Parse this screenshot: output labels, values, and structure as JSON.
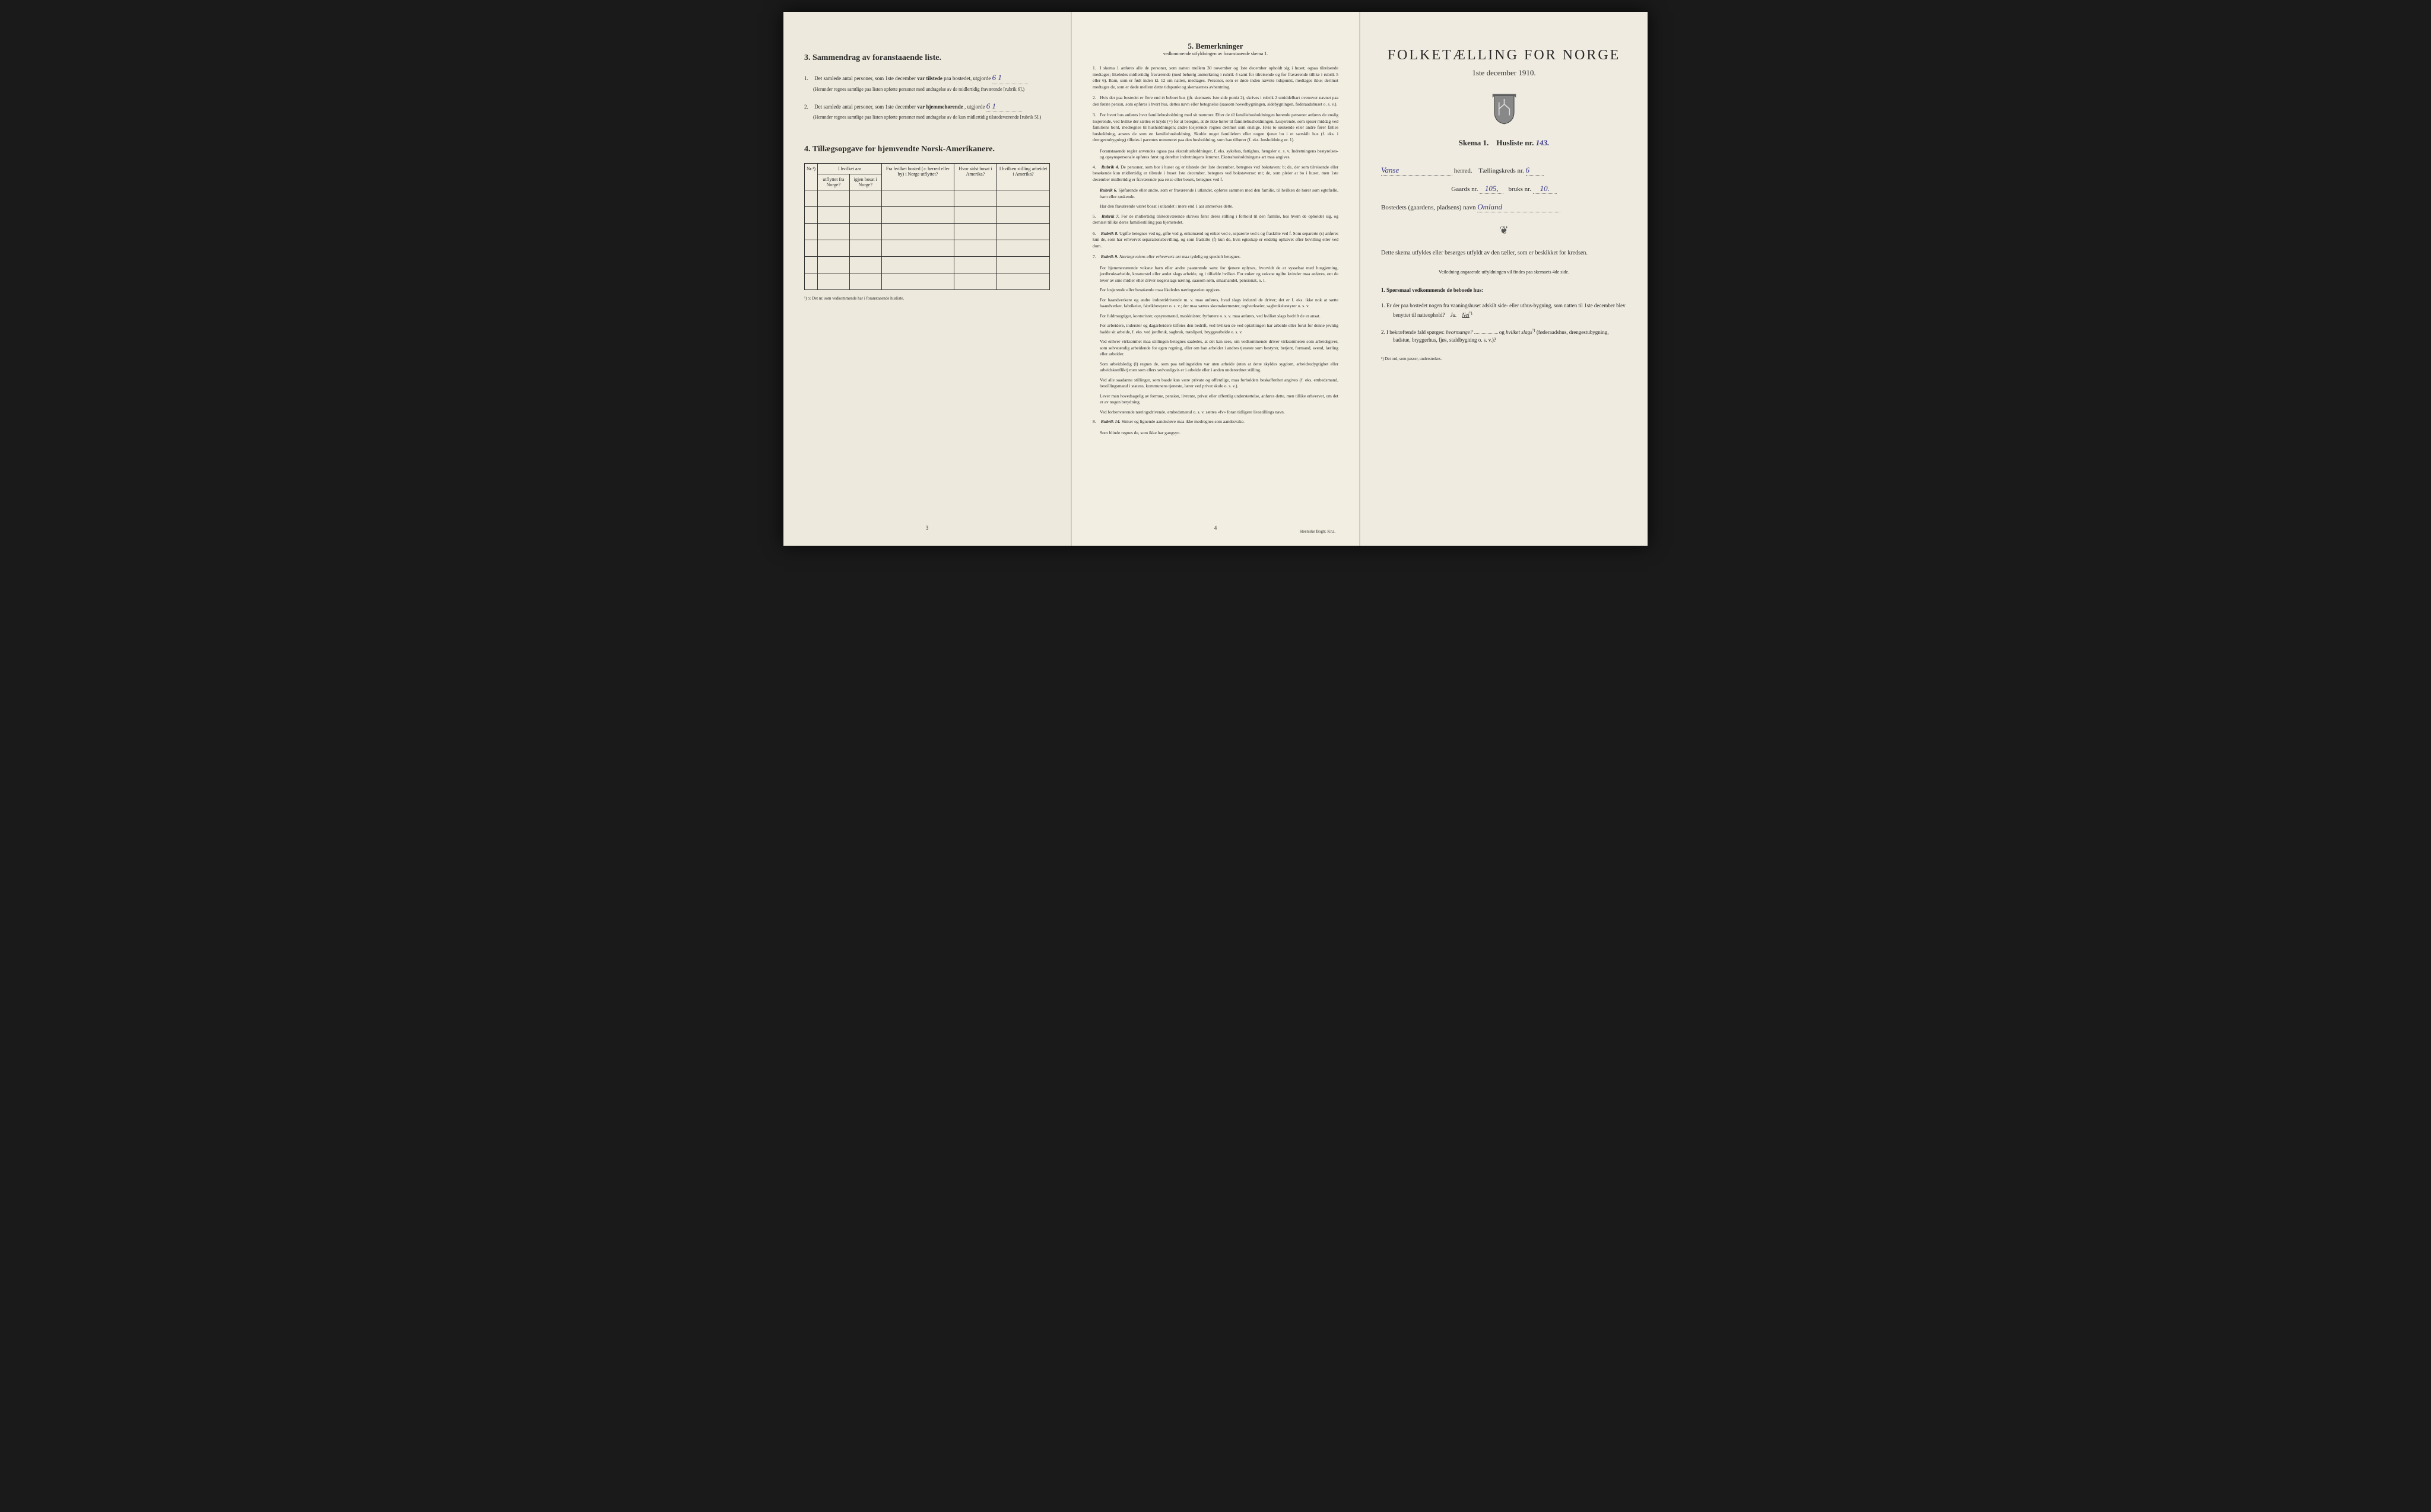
{
  "page_left": {
    "section3": {
      "number": "3.",
      "title": "Sammendrag av foranstaaende liste.",
      "item1": {
        "num": "1.",
        "text_before": "Det samlede antal personer, som 1ste december",
        "text_bold": "var tilstede",
        "text_after": "paa bostedet, utgjorde",
        "value": "6  1",
        "note": "(Herunder regnes samtlige paa listen opførte personer med undtagelse av de midlertidig fraværende [rubrik 6].)"
      },
      "item2": {
        "num": "2.",
        "text_before": "Det samlede antal personer, som 1ste december",
        "text_bold": "var hjemmehørende",
        "text_after": ", utgjorde",
        "value": "6  1",
        "note": "(Herunder regnes samtlige paa listen opførte personer med undtagelse av de kun midlertidig tilstedeværende [rubrik 5].)"
      }
    },
    "section4": {
      "number": "4.",
      "title": "Tillægsopgave for hjemvendte Norsk-Amerikanere.",
      "headers": {
        "col1": "Nr.¹)",
        "col2_top": "I hvilket aar",
        "col2a": "utflyttet fra Norge?",
        "col2b": "igjen bosat i Norge?",
        "col3": "Fra hvilket bosted (ɔ: herred eller by) i Norge utflyttet?",
        "col4": "Hvor sidst bosat i Amerika?",
        "col5": "I hvilken stilling arbeidet i Amerika?"
      },
      "footnote": "¹) ɔ: Det nr. som vedkommende har i foranstaaende husliste.",
      "rows": 6
    },
    "page_num": "3"
  },
  "page_middle": {
    "section5": {
      "number": "5.",
      "title": "Bemerkninger",
      "subtitle": "vedkommende utfyldningen av foranstaaende skema 1."
    },
    "remarks": [
      {
        "num": "1.",
        "text": "I skema 1 anføres alle de personer, som natten mellem 30 november og 1ste december opholdt sig i huset; ogsaa tilreisende medtages; likeledes midlertidig fraværende (med behørig anmerkning i rubrik 4 samt for tilreisende og for fraværende tillike i rubrik 5 eller 6). Barn, som er født inden kl. 12 om natten, medtages. Personer, som er døde inden nævnte tidspunkt, medtages ikke; derimot medtages de, som er døde mellem dette tidspunkt og skemaernes avhentning."
      },
      {
        "num": "2.",
        "text": "Hvis der paa bostedet er flere end ét beboet hus (jfr. skemaets 1ste side punkt 2), skrives i rubrik 2 umiddelbart ovenover navnet paa den første person, som opføres i hvert hus, dettes navn eller betegnelse (saasom hovedbygningen, sidebygningen, føderaadshuset o. s. v.)."
      },
      {
        "num": "3.",
        "text": "For hvert hus anføres hver familiehusholdning med sit nummer. Efter de til familiehusholdningen hørende personer anføres de enslig losjerende, ved hvilke der sættes et kryds (×) for at betegne, at de ikke hører til familiehusholdningen. Losjerende, som spiser middag ved familiens bord, medregnes til husholdningen; andre losjerende regnes derimot som enslige. Hvis to søskende eller andre fører fælles husholdning, ansees de som en familiehusholdning. Skulde noget familielem eller nogen tjener bo i et særskilt hus (f. eks. i drengestubygning) tilføies i parentes nummeret paa den husholdning, som han tilhører (f. eks. husholdning nr. 1)."
      }
    ],
    "remarks_indent1": "Foranstaaende regler anvendes ogsaa paa ekstrahusholdninger, f. eks. sykehus, fattighus, fængsler o. s. v. Indretningens bestyrelses- og opsynspersonale opføres først og derefter indretningens lemmer. Ekstrahusholdningens art maa angives.",
    "remark4": {
      "num": "4.",
      "bold": "Rubrik 4.",
      "text": "De personer, som bor i huset og er tilstede der 1ste december, betegnes ved bokstaven: b; de, der som tilreisende eller besøkende kun midlertidig er tilstede i huset 1ste december, betegnes ved bokstaverne: mt; de, som pleier at bo i huset, men 1ste december midlertidig er fraværende paa reise eller besøk, betegnes ved f."
    },
    "remark4_indent1": {
      "bold": "Rubrik 6.",
      "text": "Sjøfarende eller andre, som er fraværende i utlandet, opføres sammen med den familie, til hvilken de hører som egtefælle, barn eller søskende."
    },
    "remark4_indent2": "Har den fraværende været bosat i utlandet i mere end 1 aar anmerkes dette.",
    "remark5": {
      "num": "5.",
      "bold": "Rubrik 7.",
      "text": "For de midlertidig tilstedeværende skrives først deres stilling i forhold til den familie, hos hvem de opholder sig, og dernæst tillike deres familiestilling paa hjemstedet."
    },
    "remark6": {
      "num": "6.",
      "bold": "Rubrik 8.",
      "text": "Ugifte betegnes ved ug, gifte ved g, enkemænd og enker ved e, separerte ved s og fraskilte ved f. Som separerte (s) anføres kun de, som har erhvervet separationsbevilling, og som fraskilte (f) kun de, hvis egteskap er endelig ophævet efter bevilling eller ved dom."
    },
    "remark7": {
      "num": "7.",
      "bold": "Rubrik 9.",
      "italic": "Næringsveiens eller erhvervets art",
      "text": "maa tydelig og specielt betegnes."
    },
    "remark7_lines": [
      "For hjemmeværende voksne barn eller andre paarørende samt for tjenere oplyses, hvorvidt de er sysselsat med husgjerning, jordbruksarbeide, kreaturstel eller andet slags arbeide, og i tilfælde hvilket. For enker og voksne ugifte kvinder maa anføres, om de lever av sine midler eller driver nogenslags næring, saasom søm, smaahandel, pensionat, o. l.",
      "For losjerende eller besøkende maa likeledes næringsveien opgives.",
      "For haandverkere og andre industridrivende m. v. maa anføres, hvad slags industri de driver; det er f. eks. ikke nok at sætte haandverker, fabrikeier, fabrikbestyrer o. s. v.; der maa sættes skomakermester, teglverkseier, sagbruksbestyrer o. s. v.",
      "For fuldmægtiger, kontorister, opsynsmænd, maskinister, fyrbøtere o. s. v. maa anføres, ved hvilket slags bedrift de er ansat.",
      "For arbeidere, inderster og dagarbeidere tilføies den bedrift, ved hvilken de ved optællingen har arbeide eller forut for denne jevnlig hadde sit arbeide, f. eks. ved jordbruk, sagbruk, træsliperi, bryggearbeide o. s. v.",
      "Ved enhver virksomhet maa stillingen betegnes saaledes, at det kan sees, om vedkommende driver virksomheten som arbeidsgiver, som selvstændig arbeidende for egen regning, eller om han arbeider i andres tjeneste som bestyrer, betjent, formand, svend, lærling eller arbeider.",
      "Som arbeidsledig (l) regnes de, som paa tællingstiden var uten arbeide (uten at dette skyldes sygdom, arbeidsudygtighet eller arbeidskonflikt) men som ellers sedvanligvis er i arbeide eller i anden underordnet stilling.",
      "Ved alle saadanne stillinger, som baade kan være private og offentlige, maa forholdets beskaffenhet angives (f. eks. embedsmand, bestillingsmand i statens, kommunens tjeneste, lærer ved privat skole o. s. v.).",
      "Lever man hovedsagelig av formue, pension, livrente, privat eller offentlig understøttelse, anføres dette, men tillike erhvervet, om det er av nogen betydning.",
      "Ved forhenværende næringsdrivende, embedsmænd o. s. v. sættes «fv» foran tidligere livsstillings navn."
    ],
    "remark8": {
      "num": "8.",
      "bold": "Rubrik 14.",
      "text": "Sinker og lignende aandssløve maa ikke medregnes som aandssvake."
    },
    "remark8_indent": "Som blinde regnes de, som ikke har gangsyn.",
    "page_num": "4",
    "printer": "Steen'ske Bogtr. Kr.a."
  },
  "page_right": {
    "title": "FOLKETÆLLING FOR NORGE",
    "date": "1ste december 1910.",
    "skema_label": "Skema 1.",
    "husliste_label": "Husliste nr.",
    "husliste_value": "143.",
    "herred_value": "Vanse",
    "herred_label": "herred.",
    "kreds_label": "Tællingskreds nr.",
    "kreds_value": "6",
    "gaard_label": "Gaards nr.",
    "gaard_value": "105,",
    "bruk_label": "bruks nr.",
    "bruk_value": "10.",
    "bosted_label": "Bostedets (gaardens, pladsens) navn",
    "bosted_value": "Omland",
    "instruction": "Dette skema utfyldes eller besørges utfyldt av den tæller, som er beskikket for kredsen.",
    "small_instruction": "Veiledning angaaende utfyldningen vil findes paa skemaets 4de side.",
    "question_header": "1. Spørsmaal vedkommende de beboede hus:",
    "q1": {
      "num": "1.",
      "text": "Er der paa bostedet nogen fra vaaningshuset adskilt side- eller uthus-bygning, som natten til 1ste december blev benyttet til natteophold?",
      "answer_ja": "Ja.",
      "answer_nei": "Nei",
      "sup": "¹)."
    },
    "q2": {
      "num": "2.",
      "text_before": "I bekræftende fald spørges:",
      "italic1": "hvormange?",
      "text_mid": "og",
      "italic2": "hvilket slags",
      "sup": "¹)",
      "text_after": "(føderaadshus, drengestubygning, badstue, bryggerhus, fjøs, staldbygning o. s. v.)?"
    },
    "footnote": "¹) Det ord, som passer, understrekes."
  },
  "colors": {
    "background": "#1a1a1a",
    "paper": "#f0ece0",
    "text": "#2a2a2a",
    "handwritten": "#3a3a8a"
  }
}
